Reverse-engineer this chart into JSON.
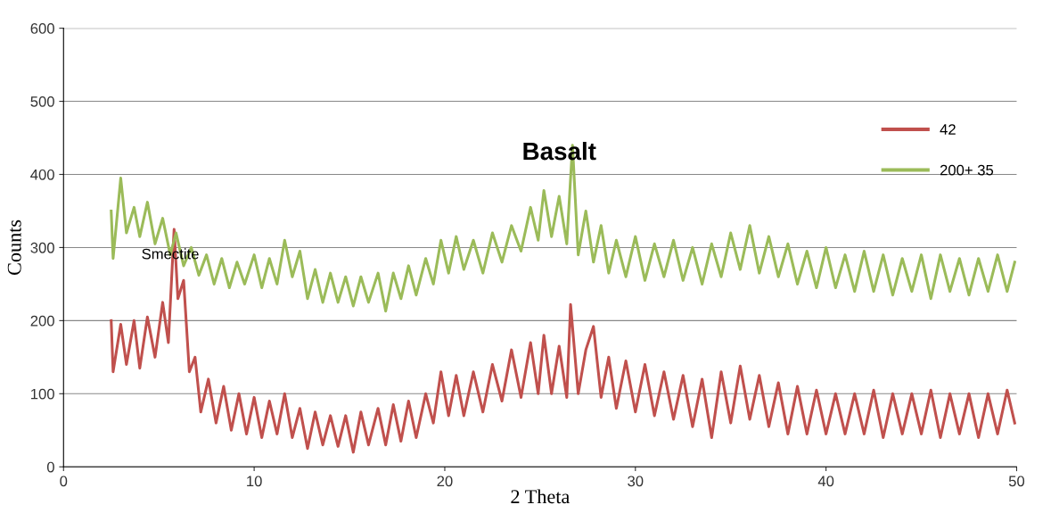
{
  "chart_data": {
    "type": "line",
    "title": "Basalt",
    "xlabel": "2 Theta",
    "ylabel": "Counts",
    "annotations": [
      {
        "text": "Smectite",
        "x": 5.6,
        "y": 280
      }
    ],
    "xlim": [
      0,
      50
    ],
    "xticks": [
      0,
      10,
      20,
      30,
      40,
      50
    ],
    "ylim": [
      0,
      600
    ],
    "yticks": [
      0,
      100,
      200,
      300,
      400,
      500,
      600
    ],
    "grid": "y",
    "legend": "right",
    "marker": "none",
    "line_style": "solid",
    "series": [
      {
        "name": "42",
        "color": "#c0504d",
        "x": [
          2.5,
          2.6,
          3.0,
          3.3,
          3.7,
          4.0,
          4.4,
          4.8,
          5.2,
          5.5,
          5.8,
          6.0,
          6.3,
          6.6,
          6.9,
          7.2,
          7.6,
          8.0,
          8.4,
          8.8,
          9.2,
          9.6,
          10.0,
          10.4,
          10.8,
          11.2,
          11.6,
          12.0,
          12.4,
          12.8,
          13.2,
          13.6,
          14.0,
          14.4,
          14.8,
          15.2,
          15.6,
          16.0,
          16.5,
          16.9,
          17.3,
          17.7,
          18.1,
          18.5,
          19.0,
          19.4,
          19.8,
          20.2,
          20.6,
          21.0,
          21.5,
          22.0,
          22.5,
          23.0,
          23.5,
          24.0,
          24.5,
          24.9,
          25.2,
          25.6,
          26.0,
          26.4,
          26.6,
          27.0,
          27.4,
          27.8,
          28.2,
          28.6,
          29.0,
          29.5,
          30.0,
          30.5,
          31.0,
          31.5,
          32.0,
          32.5,
          33.0,
          33.5,
          34.0,
          34.5,
          35.0,
          35.5,
          36.0,
          36.5,
          37.0,
          37.5,
          38.0,
          38.5,
          39.0,
          39.5,
          40.0,
          40.5,
          41.0,
          41.5,
          42.0,
          42.5,
          43.0,
          43.5,
          44.0,
          44.5,
          45.0,
          45.5,
          46.0,
          46.5,
          47.0,
          47.5,
          48.0,
          48.5,
          49.0,
          49.5,
          49.9
        ],
        "values": [
          200,
          130,
          195,
          140,
          200,
          135,
          205,
          150,
          225,
          170,
          325,
          230,
          255,
          130,
          150,
          75,
          120,
          60,
          110,
          50,
          100,
          45,
          95,
          40,
          90,
          45,
          100,
          40,
          80,
          25,
          75,
          30,
          70,
          28,
          70,
          20,
          75,
          30,
          80,
          30,
          85,
          35,
          90,
          40,
          100,
          60,
          130,
          70,
          125,
          70,
          130,
          75,
          140,
          90,
          160,
          95,
          170,
          100,
          180,
          100,
          165,
          95,
          222,
          100,
          160,
          192,
          95,
          150,
          80,
          145,
          75,
          140,
          70,
          130,
          65,
          125,
          55,
          120,
          40,
          130,
          60,
          138,
          65,
          125,
          55,
          115,
          45,
          110,
          45,
          105,
          45,
          100,
          45,
          100,
          45,
          105,
          40,
          100,
          45,
          100,
          45,
          105,
          40,
          100,
          45,
          100,
          40,
          100,
          45,
          105,
          60
        ]
      },
      {
        "name": "200+ 35",
        "color": "#9bbb59",
        "x": [
          2.5,
          2.6,
          3.0,
          3.3,
          3.7,
          4.0,
          4.4,
          4.8,
          5.2,
          5.6,
          5.9,
          6.3,
          6.7,
          7.1,
          7.5,
          7.9,
          8.3,
          8.7,
          9.1,
          9.5,
          10.0,
          10.4,
          10.8,
          11.2,
          11.6,
          12.0,
          12.4,
          12.8,
          13.2,
          13.6,
          14.0,
          14.4,
          14.8,
          15.2,
          15.6,
          16.0,
          16.5,
          16.9,
          17.3,
          17.7,
          18.1,
          18.5,
          19.0,
          19.4,
          19.8,
          20.2,
          20.6,
          21.0,
          21.5,
          22.0,
          22.5,
          23.0,
          23.5,
          24.0,
          24.5,
          24.9,
          25.2,
          25.6,
          26.0,
          26.4,
          26.7,
          27.0,
          27.4,
          27.8,
          28.2,
          28.6,
          29.0,
          29.5,
          30.0,
          30.5,
          31.0,
          31.5,
          32.0,
          32.5,
          33.0,
          33.5,
          34.0,
          34.5,
          35.0,
          35.5,
          36.0,
          36.5,
          37.0,
          37.5,
          38.0,
          38.5,
          39.0,
          39.5,
          40.0,
          40.5,
          41.0,
          41.5,
          42.0,
          42.5,
          43.0,
          43.5,
          44.0,
          44.5,
          45.0,
          45.5,
          46.0,
          46.5,
          47.0,
          47.5,
          48.0,
          48.5,
          49.0,
          49.5,
          49.9
        ],
        "values": [
          350,
          285,
          395,
          320,
          355,
          315,
          362,
          305,
          340,
          290,
          320,
          275,
          300,
          262,
          290,
          250,
          285,
          245,
          280,
          250,
          290,
          245,
          285,
          250,
          310,
          260,
          295,
          230,
          270,
          225,
          265,
          225,
          260,
          220,
          260,
          225,
          265,
          213,
          265,
          230,
          275,
          235,
          285,
          250,
          310,
          265,
          315,
          270,
          310,
          265,
          320,
          280,
          330,
          295,
          355,
          310,
          378,
          315,
          370,
          305,
          440,
          290,
          350,
          280,
          330,
          265,
          310,
          260,
          315,
          255,
          305,
          260,
          310,
          255,
          300,
          250,
          305,
          260,
          320,
          270,
          330,
          265,
          315,
          260,
          305,
          250,
          295,
          245,
          300,
          245,
          290,
          240,
          295,
          240,
          290,
          235,
          285,
          240,
          290,
          230,
          290,
          240,
          285,
          235,
          285,
          240,
          290,
          240,
          280
        ]
      }
    ]
  }
}
